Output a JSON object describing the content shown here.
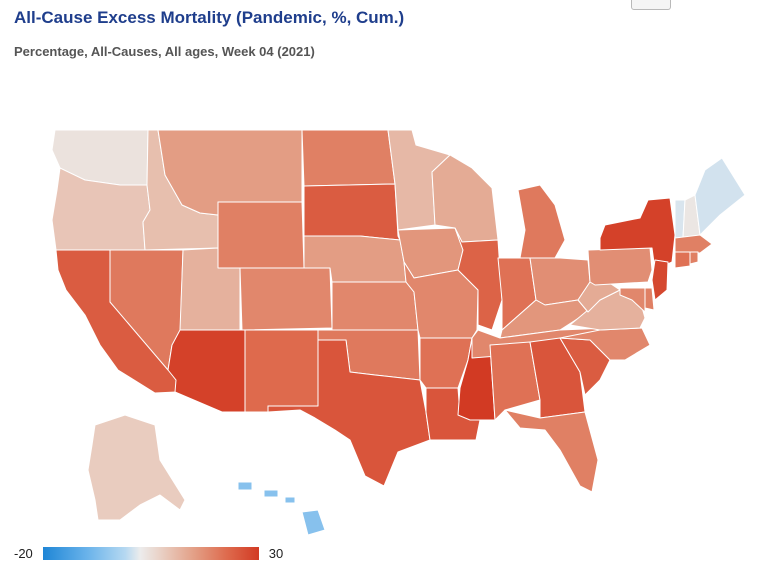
{
  "title": "All-Cause Excess Mortality (Pandemic, %, Cum.)",
  "subtitle": "Percentage, All-Causes, All ages, Week 04 (2021)",
  "legend": {
    "min": "-20",
    "max": "30"
  },
  "scale": {
    "min": -20,
    "max": 30,
    "stops": [
      "#1f86d6",
      "#68b2ea",
      "#b5d8f1",
      "#ececec",
      "#e9cfc3",
      "#e39f86",
      "#de6b4e",
      "#d23a23"
    ]
  },
  "states": [
    {
      "code": "WA",
      "value": 4
    },
    {
      "code": "OR",
      "value": 10
    },
    {
      "code": "CA",
      "value": 25
    },
    {
      "code": "NV",
      "value": 21
    },
    {
      "code": "ID",
      "value": 11
    },
    {
      "code": "MT",
      "value": 16
    },
    {
      "code": "WY",
      "value": 20
    },
    {
      "code": "UT",
      "value": 13
    },
    {
      "code": "AZ",
      "value": 29
    },
    {
      "code": "CO",
      "value": 19
    },
    {
      "code": "NM",
      "value": 23
    },
    {
      "code": "ND",
      "value": 20
    },
    {
      "code": "SD",
      "value": 25
    },
    {
      "code": "NE",
      "value": 16
    },
    {
      "code": "KS",
      "value": 19
    },
    {
      "code": "OK",
      "value": 21
    },
    {
      "code": "TX",
      "value": 26
    },
    {
      "code": "MN",
      "value": 12
    },
    {
      "code": "IA",
      "value": 17
    },
    {
      "code": "MO",
      "value": 19
    },
    {
      "code": "AR",
      "value": 22
    },
    {
      "code": "LA",
      "value": 26
    },
    {
      "code": "WI",
      "value": 14
    },
    {
      "code": "IL",
      "value": 24
    },
    {
      "code": "MS",
      "value": 30
    },
    {
      "code": "MI",
      "value": 21
    },
    {
      "code": "IN",
      "value": 22
    },
    {
      "code": "OH",
      "value": 18
    },
    {
      "code": "KY",
      "value": 17
    },
    {
      "code": "TN",
      "value": 19
    },
    {
      "code": "AL",
      "value": 22
    },
    {
      "code": "GA",
      "value": 26
    },
    {
      "code": "FL",
      "value": 20
    },
    {
      "code": "SC",
      "value": 25
    },
    {
      "code": "NC",
      "value": 19
    },
    {
      "code": "VA",
      "value": 13
    },
    {
      "code": "WV",
      "value": 14
    },
    {
      "code": "PA",
      "value": 18
    },
    {
      "code": "NY",
      "value": 29
    },
    {
      "code": "VT",
      "value": -1
    },
    {
      "code": "NH",
      "value": 3
    },
    {
      "code": "ME",
      "value": -2
    },
    {
      "code": "MA",
      "value": 20
    },
    {
      "code": "CT",
      "value": 22
    },
    {
      "code": "RI",
      "value": 20
    },
    {
      "code": "NJ",
      "value": 28
    },
    {
      "code": "DE",
      "value": 20
    },
    {
      "code": "MD",
      "value": 19
    },
    {
      "code": "AK",
      "value": 9
    },
    {
      "code": "HI",
      "value": -10
    }
  ]
}
